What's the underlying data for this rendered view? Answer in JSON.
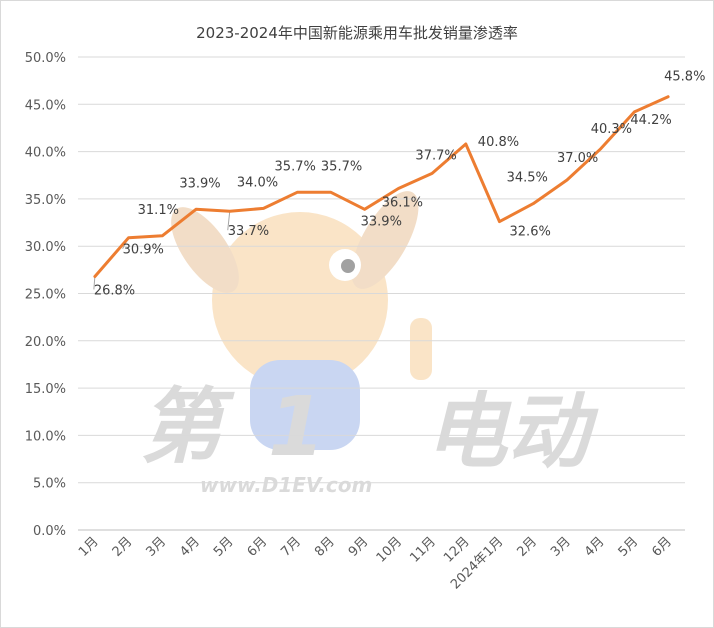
{
  "chart_data": {
    "type": "line",
    "title": "2023-2024年中国新能源乘用车批发销量渗透率",
    "categories": [
      "1月",
      "2月",
      "3月",
      "4月",
      "5月",
      "6月",
      "7月",
      "8月",
      "9月",
      "10月",
      "11月",
      "12月",
      "2024年1月",
      "2月",
      "3月",
      "4月",
      "5月",
      "6月"
    ],
    "series": [
      {
        "values": [
          26.8,
          30.9,
          31.1,
          33.9,
          33.7,
          34.0,
          35.7,
          35.7,
          33.9,
          36.1,
          37.7,
          40.8,
          32.6,
          34.5,
          37.0,
          40.3,
          44.2,
          45.8
        ]
      }
    ],
    "data_labels": [
      "26.8%",
      "30.9%",
      "31.1%",
      "33.9%",
      "33.7%",
      "34.0%",
      "35.7%",
      "35.7%",
      "33.9%",
      "36.1%",
      "37.7%",
      "40.8%",
      "32.6%",
      "34.5%",
      "37.0%",
      "40.3%",
      "44.2%",
      "45.8%"
    ],
    "y_ticks": [
      "0.0%",
      "5.0%",
      "10.0%",
      "15.0%",
      "20.0%",
      "25.0%",
      "30.0%",
      "35.0%",
      "40.0%",
      "45.0%",
      "50.0%"
    ],
    "ylim": [
      0,
      50
    ],
    "xlabel": "",
    "ylabel": "",
    "grid": true,
    "legend": "none",
    "line_color": "#ED7D31"
  },
  "watermark": {
    "big_left": "第",
    "big_num": "1",
    "big_right": "电动",
    "url": "www.D1EV.com"
  }
}
